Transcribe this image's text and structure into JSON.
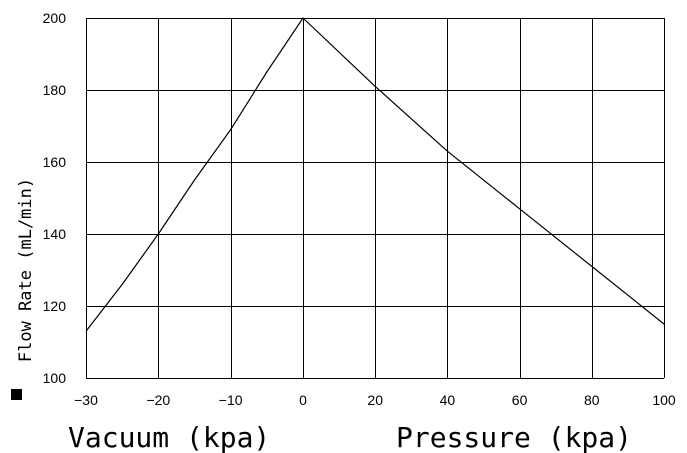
{
  "chart_data": {
    "type": "line",
    "title": "",
    "ylabel": "Flow Rate (mL/min)",
    "xlabel_left": "Vacuum (kpa)",
    "xlabel_right": "Pressure (kpa)",
    "xlim": [
      -30,
      100
    ],
    "ylim": [
      100,
      200
    ],
    "x_ticks": [
      -30,
      -20,
      -10,
      0,
      20,
      40,
      60,
      80,
      100
    ],
    "y_ticks": [
      100,
      120,
      140,
      160,
      180,
      200
    ],
    "grid": true,
    "legend": "none",
    "series": [
      {
        "color": "#000000",
        "points": [
          [
            -30,
            113
          ],
          [
            -25,
            126
          ],
          [
            -20,
            140
          ],
          [
            -15,
            155
          ],
          [
            -10,
            169
          ],
          [
            -5,
            185
          ],
          [
            0,
            200
          ],
          [
            20,
            181
          ],
          [
            40,
            163
          ],
          [
            60,
            147
          ],
          [
            80,
            131
          ],
          [
            100,
            115
          ]
        ]
      }
    ]
  }
}
